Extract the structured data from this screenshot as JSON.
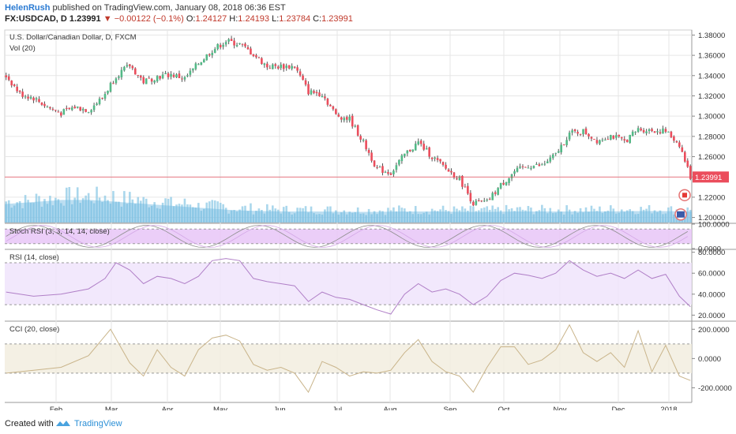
{
  "header": {
    "author": "HelenRush",
    "published_text": "published on TradingView.com, January 08, 2018 06:36 EST",
    "symbol": "FX:USDCAD, D",
    "last": "1.23991",
    "change": "−0.00122 (−0.1%)",
    "o_label": "O:",
    "o": "1.24127",
    "h_label": "H:",
    "h": "1.24193",
    "l_label": "L:",
    "l": "1.23784",
    "c_label": "C:",
    "c": "1.23991"
  },
  "footer": {
    "created_with": "Created with",
    "brand": "TradingView"
  },
  "chart_data": {
    "type": "candlestick",
    "title": "U.S. Dollar/Canadian Dollar, D, FXCM",
    "volume_label": "Vol (20)",
    "last_price_label": "1.23991",
    "x_ticks": [
      "Feb",
      "Mar",
      "Apr",
      "May",
      "Jun",
      "Jul",
      "Aug",
      "Sep",
      "Oct",
      "Nov",
      "Dec",
      "2018"
    ],
    "price_axis": {
      "ylim": [
        1.195,
        1.385
      ],
      "ticks": [
        "1.38000",
        "1.36000",
        "1.34000",
        "1.32000",
        "1.30000",
        "1.28000",
        "1.26000",
        "1.24000",
        "1.22000",
        "1.20000"
      ]
    },
    "close_path": [
      {
        "x": 0,
        "y": 1.34
      },
      {
        "x": 5,
        "y": 1.322
      },
      {
        "x": 10,
        "y": 1.318
      },
      {
        "x": 15,
        "y": 1.309
      },
      {
        "x": 20,
        "y": 1.303
      },
      {
        "x": 25,
        "y": 1.309
      },
      {
        "x": 30,
        "y": 1.306
      },
      {
        "x": 35,
        "y": 1.318
      },
      {
        "x": 40,
        "y": 1.34
      },
      {
        "x": 45,
        "y": 1.35
      },
      {
        "x": 50,
        "y": 1.334
      },
      {
        "x": 55,
        "y": 1.339
      },
      {
        "x": 60,
        "y": 1.341
      },
      {
        "x": 65,
        "y": 1.337
      },
      {
        "x": 70,
        "y": 1.352
      },
      {
        "x": 75,
        "y": 1.365
      },
      {
        "x": 80,
        "y": 1.374
      },
      {
        "x": 85,
        "y": 1.371
      },
      {
        "x": 90,
        "y": 1.361
      },
      {
        "x": 95,
        "y": 1.349
      },
      {
        "x": 100,
        "y": 1.349
      },
      {
        "x": 105,
        "y": 1.349
      },
      {
        "x": 110,
        "y": 1.324
      },
      {
        "x": 115,
        "y": 1.322
      },
      {
        "x": 120,
        "y": 1.301
      },
      {
        "x": 125,
        "y": 1.297
      },
      {
        "x": 130,
        "y": 1.274
      },
      {
        "x": 135,
        "y": 1.248
      },
      {
        "x": 140,
        "y": 1.244
      },
      {
        "x": 145,
        "y": 1.262
      },
      {
        "x": 150,
        "y": 1.274
      },
      {
        "x": 155,
        "y": 1.26
      },
      {
        "x": 160,
        "y": 1.248
      },
      {
        "x": 165,
        "y": 1.238
      },
      {
        "x": 170,
        "y": 1.214
      },
      {
        "x": 175,
        "y": 1.215
      },
      {
        "x": 180,
        "y": 1.232
      },
      {
        "x": 185,
        "y": 1.245
      },
      {
        "x": 190,
        "y": 1.251
      },
      {
        "x": 195,
        "y": 1.251
      },
      {
        "x": 200,
        "y": 1.262
      },
      {
        "x": 205,
        "y": 1.283
      },
      {
        "x": 210,
        "y": 1.285
      },
      {
        "x": 215,
        "y": 1.276
      },
      {
        "x": 220,
        "y": 1.281
      },
      {
        "x": 225,
        "y": 1.275
      },
      {
        "x": 230,
        "y": 1.287
      },
      {
        "x": 235,
        "y": 1.286
      },
      {
        "x": 240,
        "y": 1.285
      },
      {
        "x": 245,
        "y": 1.272
      },
      {
        "x": 249,
        "y": 1.24
      }
    ],
    "volume_level": [
      0.45,
      0.5,
      0.55,
      0.55,
      0.5,
      0.45,
      0.4,
      0.35,
      0.3,
      0.28,
      0.27,
      0.27,
      0.26,
      0.26,
      0.27,
      0.27,
      0.26,
      0.26,
      0.27,
      0.27,
      0.27,
      0.27,
      0.28,
      0.28,
      0.27
    ],
    "indicators": [
      {
        "name": "Stoch RSI (3, 3, 14, 14, close)",
        "ticks": [
          "100.0000",
          "0.0000"
        ],
        "ylim": [
          0,
          100
        ],
        "band": [
          20,
          80
        ]
      },
      {
        "name": "RSI (14, close)",
        "ticks": [
          "80.0000",
          "60.0000",
          "40.0000",
          "20.0000"
        ],
        "ylim": [
          15,
          82
        ],
        "band": [
          30,
          70
        ],
        "path": [
          {
            "x": 0,
            "y": 42
          },
          {
            "x": 10,
            "y": 38
          },
          {
            "x": 20,
            "y": 40
          },
          {
            "x": 30,
            "y": 45
          },
          {
            "x": 36,
            "y": 55
          },
          {
            "x": 40,
            "y": 70
          },
          {
            "x": 45,
            "y": 63
          },
          {
            "x": 50,
            "y": 50
          },
          {
            "x": 55,
            "y": 57
          },
          {
            "x": 60,
            "y": 55
          },
          {
            "x": 65,
            "y": 50
          },
          {
            "x": 70,
            "y": 57
          },
          {
            "x": 75,
            "y": 72
          },
          {
            "x": 80,
            "y": 74
          },
          {
            "x": 85,
            "y": 72
          },
          {
            "x": 90,
            "y": 55
          },
          {
            "x": 95,
            "y": 52
          },
          {
            "x": 100,
            "y": 50
          },
          {
            "x": 105,
            "y": 48
          },
          {
            "x": 110,
            "y": 33
          },
          {
            "x": 115,
            "y": 42
          },
          {
            "x": 120,
            "y": 37
          },
          {
            "x": 125,
            "y": 35
          },
          {
            "x": 130,
            "y": 30
          },
          {
            "x": 135,
            "y": 25
          },
          {
            "x": 140,
            "y": 21
          },
          {
            "x": 145,
            "y": 40
          },
          {
            "x": 150,
            "y": 50
          },
          {
            "x": 155,
            "y": 42
          },
          {
            "x": 160,
            "y": 45
          },
          {
            "x": 165,
            "y": 40
          },
          {
            "x": 170,
            "y": 30
          },
          {
            "x": 175,
            "y": 38
          },
          {
            "x": 180,
            "y": 53
          },
          {
            "x": 185,
            "y": 60
          },
          {
            "x": 190,
            "y": 58
          },
          {
            "x": 195,
            "y": 55
          },
          {
            "x": 200,
            "y": 60
          },
          {
            "x": 205,
            "y": 72
          },
          {
            "x": 210,
            "y": 63
          },
          {
            "x": 215,
            "y": 57
          },
          {
            "x": 220,
            "y": 60
          },
          {
            "x": 225,
            "y": 55
          },
          {
            "x": 230,
            "y": 63
          },
          {
            "x": 235,
            "y": 55
          },
          {
            "x": 240,
            "y": 59
          },
          {
            "x": 245,
            "y": 38
          },
          {
            "x": 249,
            "y": 28
          }
        ]
      },
      {
        "name": "CCI (20, close)",
        "ticks": [
          "200.0000",
          "0.0000",
          "-200.0000"
        ],
        "ylim": [
          -300,
          250
        ],
        "band": [
          -100,
          100
        ],
        "path": [
          {
            "x": 0,
            "y": -100
          },
          {
            "x": 10,
            "y": -80
          },
          {
            "x": 20,
            "y": -60
          },
          {
            "x": 30,
            "y": 20
          },
          {
            "x": 38,
            "y": 200
          },
          {
            "x": 45,
            "y": -30
          },
          {
            "x": 50,
            "y": -120
          },
          {
            "x": 55,
            "y": 60
          },
          {
            "x": 60,
            "y": -60
          },
          {
            "x": 65,
            "y": -120
          },
          {
            "x": 70,
            "y": 60
          },
          {
            "x": 75,
            "y": 140
          },
          {
            "x": 80,
            "y": 160
          },
          {
            "x": 85,
            "y": 120
          },
          {
            "x": 90,
            "y": -40
          },
          {
            "x": 95,
            "y": -80
          },
          {
            "x": 100,
            "y": -60
          },
          {
            "x": 105,
            "y": -100
          },
          {
            "x": 110,
            "y": -230
          },
          {
            "x": 115,
            "y": -20
          },
          {
            "x": 120,
            "y": -60
          },
          {
            "x": 125,
            "y": -120
          },
          {
            "x": 130,
            "y": -90
          },
          {
            "x": 135,
            "y": -100
          },
          {
            "x": 140,
            "y": -80
          },
          {
            "x": 145,
            "y": 40
          },
          {
            "x": 150,
            "y": 130
          },
          {
            "x": 155,
            "y": -20
          },
          {
            "x": 160,
            "y": -90
          },
          {
            "x": 165,
            "y": -120
          },
          {
            "x": 170,
            "y": -230
          },
          {
            "x": 175,
            "y": -60
          },
          {
            "x": 180,
            "y": 80
          },
          {
            "x": 185,
            "y": 80
          },
          {
            "x": 190,
            "y": -40
          },
          {
            "x": 195,
            "y": -10
          },
          {
            "x": 200,
            "y": 60
          },
          {
            "x": 205,
            "y": 230
          },
          {
            "x": 210,
            "y": 40
          },
          {
            "x": 215,
            "y": -20
          },
          {
            "x": 220,
            "y": 40
          },
          {
            "x": 225,
            "y": -60
          },
          {
            "x": 230,
            "y": 190
          },
          {
            "x": 235,
            "y": -90
          },
          {
            "x": 240,
            "y": 90
          },
          {
            "x": 245,
            "y": -120
          },
          {
            "x": 249,
            "y": -150
          }
        ]
      }
    ]
  },
  "colors": {
    "up": "#53b987",
    "down": "#eb4d5c",
    "wick": "#555555",
    "volume": "#8ec9e6",
    "volume_ma": "#6bb6e0",
    "stoch_bg": "#e8c6f7",
    "rsi_bg": "#f0e4fb",
    "cci_bg": "#f2eddf",
    "lastline": "#eb4d5c",
    "grid": "#e6e6e6",
    "text": "#333333",
    "tv_blue": "#2196f3"
  }
}
